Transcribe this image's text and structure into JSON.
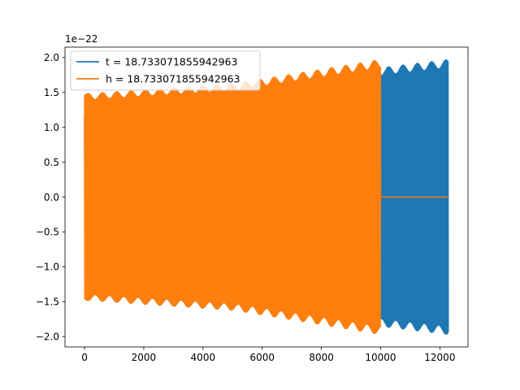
{
  "chart_data": {
    "type": "line",
    "title": "",
    "xlabel": "",
    "ylabel": "",
    "y_offset_label": "1e−22",
    "xlim": [
      -660,
      12950
    ],
    "ylim": [
      -2.15,
      2.15
    ],
    "xticks": [
      0,
      2000,
      4000,
      6000,
      8000,
      10000,
      12000
    ],
    "yticks": [
      -2.0,
      -1.5,
      -1.0,
      -0.5,
      0.0,
      0.5,
      1.0,
      1.5,
      2.0
    ],
    "grid": false,
    "legend_position": "upper-left",
    "series": [
      {
        "name": "t = 18.733071855942963",
        "color": "#1f77b4",
        "x_range": [
          0,
          12290
        ],
        "envelope": {
          "x": [
            0,
            100,
            6000,
            12290
          ],
          "amp": [
            1.2,
            1.48,
            1.65,
            1.97
          ]
        },
        "oscillation_period": 95
      },
      {
        "name": "h = 18.733071855942963",
        "color": "#ff7f0e",
        "x_range": [
          0,
          10000
        ],
        "envelope": {
          "x": [
            0,
            100,
            5000,
            10000
          ],
          "amp": [
            1.5,
            1.48,
            1.62,
            1.97
          ]
        },
        "oscillation_period": 95,
        "zero_tail_until": 12290
      }
    ]
  }
}
